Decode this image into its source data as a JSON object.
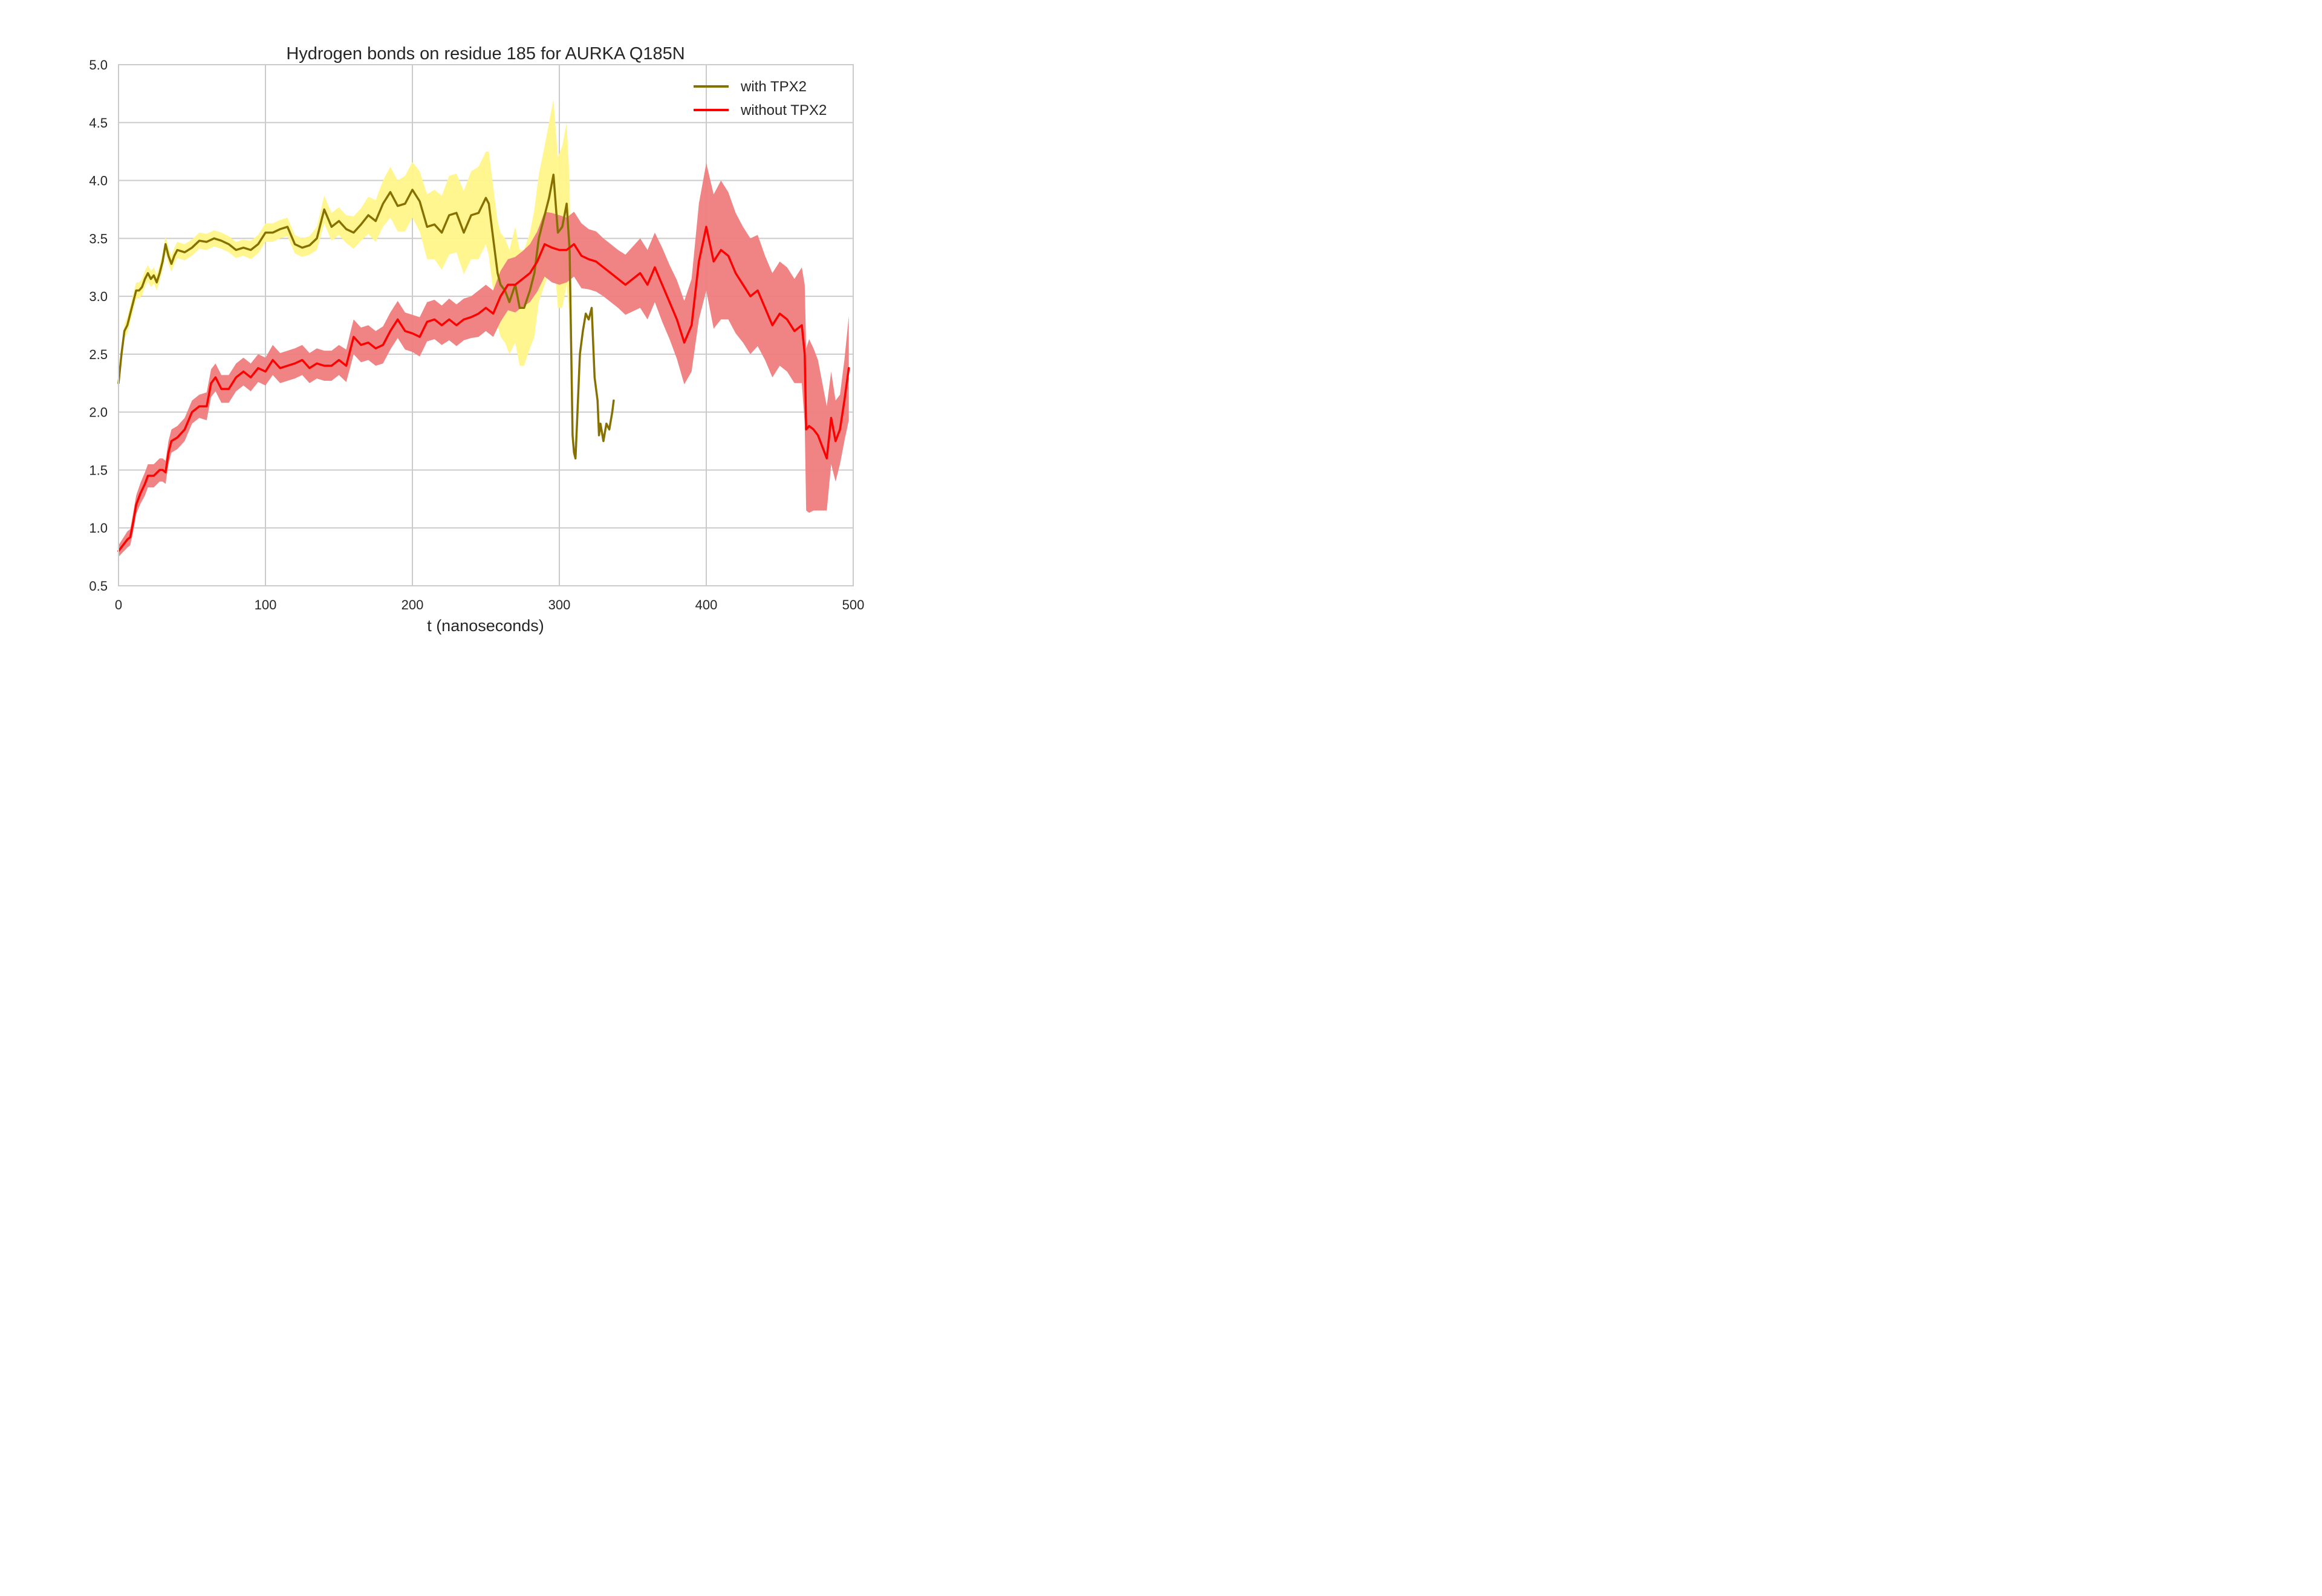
{
  "chart_data": {
    "type": "line",
    "title": "Hydrogen bonds on residue 185 for AURKA Q185N",
    "xlabel": "t (nanoseconds)",
    "ylabel": "",
    "xlim": [
      0,
      500
    ],
    "ylim": [
      0.5,
      5.0
    ],
    "xticks": [
      "0",
      "100",
      "200",
      "300",
      "400",
      "500"
    ],
    "yticks": [
      "0.5",
      "1.0",
      "1.5",
      "2.0",
      "2.5",
      "3.0",
      "3.5",
      "4.0",
      "4.5",
      "5.0"
    ],
    "grid": true,
    "legend_position": "top-right",
    "series": [
      {
        "name": "with TPX2",
        "line_color": "#857000",
        "band_color": "#fff68a",
        "x": [
          0,
          2,
          4,
          6,
          8,
          10,
          12,
          14,
          16,
          18,
          20,
          22,
          24,
          26,
          28,
          30,
          32,
          34,
          36,
          38,
          40,
          45,
          50,
          55,
          60,
          65,
          70,
          75,
          80,
          85,
          90,
          95,
          100,
          105,
          110,
          115,
          120,
          125,
          130,
          135,
          140,
          145,
          150,
          155,
          160,
          165,
          170,
          175,
          180,
          185,
          190,
          195,
          200,
          205,
          210,
          215,
          220,
          225,
          230,
          235,
          240,
          245,
          250,
          252,
          255,
          258,
          260,
          263,
          266,
          270,
          273,
          276,
          280,
          283,
          286,
          290,
          293,
          296,
          299,
          302,
          305,
          307,
          309,
          310,
          311,
          312,
          313,
          314,
          316,
          318,
          320,
          322,
          324,
          326,
          327,
          328,
          330,
          332,
          334,
          336,
          337
        ],
        "y": [
          2.25,
          2.5,
          2.7,
          2.75,
          2.85,
          2.95,
          3.05,
          3.05,
          3.08,
          3.15,
          3.2,
          3.15,
          3.18,
          3.12,
          3.2,
          3.3,
          3.45,
          3.35,
          3.28,
          3.35,
          3.4,
          3.38,
          3.42,
          3.48,
          3.47,
          3.5,
          3.48,
          3.45,
          3.4,
          3.42,
          3.4,
          3.45,
          3.55,
          3.55,
          3.58,
          3.6,
          3.45,
          3.42,
          3.44,
          3.5,
          3.75,
          3.6,
          3.65,
          3.58,
          3.55,
          3.62,
          3.7,
          3.65,
          3.8,
          3.9,
          3.78,
          3.8,
          3.92,
          3.82,
          3.6,
          3.62,
          3.55,
          3.7,
          3.72,
          3.55,
          3.7,
          3.72,
          3.85,
          3.8,
          3.5,
          3.2,
          3.1,
          3.05,
          2.95,
          3.1,
          2.9,
          2.9,
          3.05,
          3.2,
          3.5,
          3.7,
          3.85,
          4.05,
          3.55,
          3.6,
          3.8,
          3.4,
          1.8,
          1.65,
          1.6,
          1.9,
          2.2,
          2.5,
          2.7,
          2.85,
          2.8,
          2.9,
          2.3,
          2.1,
          1.8,
          1.9,
          1.75,
          1.9,
          1.85,
          2.0,
          2.1
        ],
        "band": [
          0.05,
          0.06,
          0.06,
          0.07,
          0.07,
          0.07,
          0.07,
          0.07,
          0.07,
          0.07,
          0.07,
          0.07,
          0.07,
          0.07,
          0.07,
          0.07,
          0.07,
          0.07,
          0.07,
          0.07,
          0.07,
          0.07,
          0.07,
          0.07,
          0.07,
          0.07,
          0.07,
          0.07,
          0.07,
          0.07,
          0.08,
          0.08,
          0.08,
          0.08,
          0.08,
          0.08,
          0.08,
          0.08,
          0.08,
          0.1,
          0.12,
          0.12,
          0.12,
          0.12,
          0.14,
          0.14,
          0.16,
          0.18,
          0.2,
          0.22,
          0.22,
          0.24,
          0.24,
          0.26,
          0.28,
          0.3,
          0.32,
          0.34,
          0.34,
          0.36,
          0.38,
          0.4,
          0.4,
          0.45,
          0.45,
          0.45,
          0.45,
          0.45,
          0.45,
          0.5,
          0.5,
          0.5,
          0.5,
          0.55,
          0.55,
          0.6,
          0.65,
          0.65,
          0.65,
          0.7,
          0.7,
          0.6,
          0.0,
          0.0,
          0.0,
          0.0,
          0.0,
          0.0,
          0.0,
          0.0,
          0.0,
          0.0,
          0.0,
          0.0,
          0.0,
          0.0,
          0.0,
          0.0,
          0.0,
          0.0,
          0.0
        ],
        "band_until": 309
      },
      {
        "name": "without TPX2",
        "line_color": "#ff0000",
        "band_color": "#ef7d7d",
        "x": [
          0,
          3,
          6,
          8,
          10,
          12,
          15,
          18,
          20,
          24,
          28,
          30,
          32,
          34,
          36,
          40,
          45,
          50,
          55,
          60,
          63,
          66,
          70,
          75,
          80,
          85,
          90,
          95,
          100,
          105,
          110,
          115,
          120,
          125,
          130,
          135,
          140,
          145,
          150,
          155,
          158,
          160,
          165,
          170,
          175,
          180,
          185,
          190,
          195,
          200,
          205,
          210,
          215,
          220,
          225,
          230,
          235,
          240,
          245,
          250,
          255,
          260,
          265,
          270,
          275,
          280,
          285,
          290,
          295,
          300,
          305,
          310,
          315,
          320,
          325,
          330,
          335,
          340,
          345,
          350,
          355,
          360,
          365,
          370,
          375,
          380,
          385,
          390,
          395,
          400,
          405,
          410,
          415,
          420,
          425,
          430,
          435,
          440,
          445,
          450,
          455,
          460,
          465,
          467,
          468,
          470,
          473,
          476,
          479,
          482,
          485,
          488,
          491,
          494,
          497
        ],
        "y": [
          0.8,
          0.85,
          0.9,
          0.92,
          1.05,
          1.2,
          1.3,
          1.38,
          1.45,
          1.45,
          1.5,
          1.5,
          1.48,
          1.65,
          1.75,
          1.78,
          1.85,
          2.0,
          2.05,
          2.05,
          2.25,
          2.3,
          2.2,
          2.2,
          2.3,
          2.35,
          2.3,
          2.38,
          2.35,
          2.45,
          2.38,
          2.4,
          2.42,
          2.45,
          2.38,
          2.42,
          2.4,
          2.4,
          2.45,
          2.4,
          2.55,
          2.65,
          2.58,
          2.6,
          2.55,
          2.58,
          2.7,
          2.8,
          2.7,
          2.68,
          2.65,
          2.78,
          2.8,
          2.75,
          2.8,
          2.75,
          2.8,
          2.82,
          2.85,
          2.9,
          2.85,
          3.0,
          3.1,
          3.1,
          3.15,
          3.2,
          3.3,
          3.45,
          3.42,
          3.4,
          3.4,
          3.45,
          3.35,
          3.32,
          3.3,
          3.25,
          3.2,
          3.15,
          3.1,
          3.15,
          3.2,
          3.1,
          3.25,
          3.1,
          2.95,
          2.8,
          2.6,
          2.75,
          3.3,
          3.6,
          3.3,
          3.4,
          3.35,
          3.2,
          3.1,
          3.0,
          3.05,
          2.9,
          2.75,
          2.85,
          2.8,
          2.7,
          2.75,
          2.5,
          1.85,
          1.88,
          1.85,
          1.8,
          1.7,
          1.6,
          1.95,
          1.75,
          1.85,
          2.1,
          2.38
        ],
        "band": [
          0.05,
          0.06,
          0.07,
          0.07,
          0.08,
          0.08,
          0.09,
          0.1,
          0.1,
          0.1,
          0.1,
          0.1,
          0.1,
          0.1,
          0.1,
          0.1,
          0.1,
          0.1,
          0.1,
          0.12,
          0.12,
          0.12,
          0.12,
          0.12,
          0.12,
          0.12,
          0.12,
          0.12,
          0.12,
          0.13,
          0.13,
          0.13,
          0.13,
          0.13,
          0.13,
          0.13,
          0.13,
          0.13,
          0.13,
          0.14,
          0.15,
          0.15,
          0.15,
          0.15,
          0.15,
          0.16,
          0.16,
          0.16,
          0.16,
          0.16,
          0.17,
          0.17,
          0.17,
          0.17,
          0.18,
          0.18,
          0.18,
          0.18,
          0.2,
          0.2,
          0.2,
          0.22,
          0.22,
          0.24,
          0.24,
          0.25,
          0.26,
          0.28,
          0.3,
          0.3,
          0.28,
          0.28,
          0.28,
          0.26,
          0.26,
          0.25,
          0.25,
          0.25,
          0.26,
          0.28,
          0.3,
          0.3,
          0.3,
          0.32,
          0.32,
          0.34,
          0.36,
          0.4,
          0.5,
          0.55,
          0.58,
          0.6,
          0.55,
          0.52,
          0.5,
          0.5,
          0.48,
          0.45,
          0.45,
          0.45,
          0.45,
          0.45,
          0.5,
          0.6,
          0.7,
          0.75,
          0.7,
          0.65,
          0.55,
          0.45,
          0.4,
          0.35,
          0.3,
          0.35,
          0.45
        ]
      }
    ]
  }
}
